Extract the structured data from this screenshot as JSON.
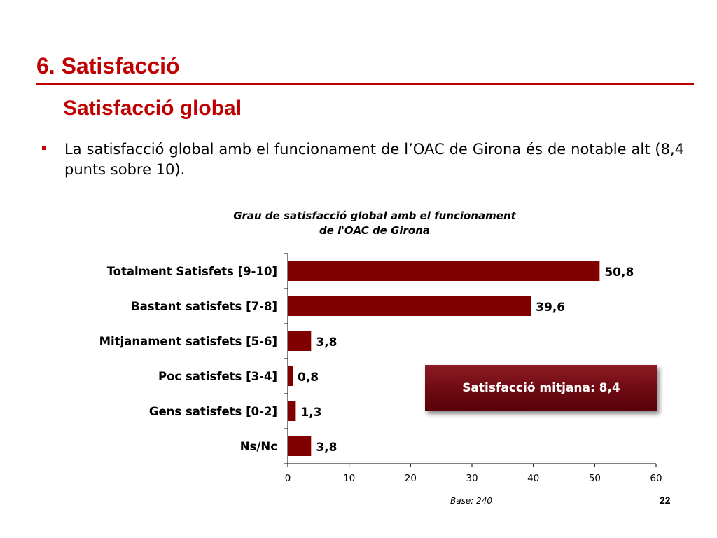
{
  "slide": {
    "section_title": "6. Satisfacció",
    "subtitle": "Satisfacció global",
    "bullet_text": "La satisfacció global amb el funcionament de l’OAC de Girona és de notable alt (8,4 punts sobre 10).",
    "callout": "Satisfacció mitjana: 8,4",
    "base_note": "Base: 240",
    "page_number": "22",
    "accent_color": "#c00000",
    "bar_color": "#800000"
  },
  "chart_data": {
    "type": "bar",
    "orientation": "horizontal",
    "title_lines": [
      "Grau de satisfacció global amb el funcionament",
      "de l'OAC de Girona"
    ],
    "categories": [
      "Totalment Satisfets [9-10]",
      "Bastant satisfets [7-8]",
      "Mitjanament satisfets [5-6]",
      "Poc satisfets [3-4]",
      "Gens satisfets [0-2]",
      "Ns/Nc"
    ],
    "values": [
      50.8,
      39.6,
      3.8,
      0.8,
      1.3,
      3.8
    ],
    "value_labels": [
      "50,8",
      "39,6",
      "3,8",
      "0,8",
      "1,3",
      "3,8"
    ],
    "xlim": [
      0,
      60
    ],
    "xticks": [
      0,
      10,
      20,
      30,
      40,
      50,
      60
    ],
    "grid": false,
    "legend": "none"
  }
}
